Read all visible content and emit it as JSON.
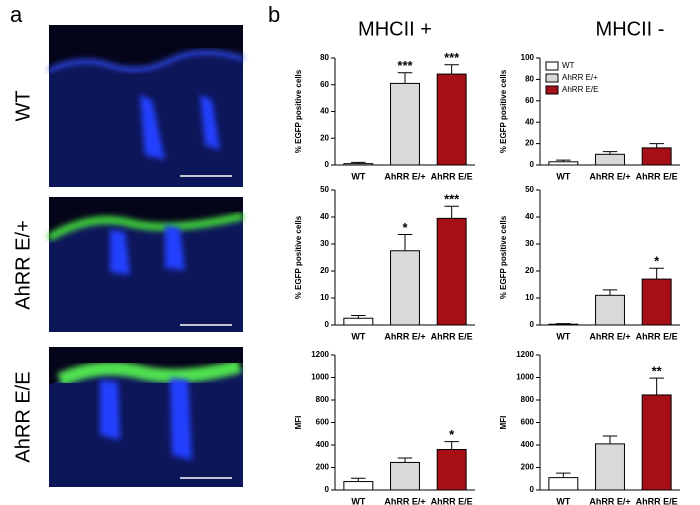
{
  "panels": {
    "a": "a",
    "b": "b"
  },
  "images": {
    "labels": [
      "WT",
      "AhRR E/+",
      "AhRR E/E"
    ]
  },
  "column_titles": [
    "MHCII +",
    "MHCII -"
  ],
  "chart_data": [
    {
      "type": "bar",
      "ylabel": "% EGFP positive cells",
      "categories": [
        "WT",
        "AhRR E/+",
        "AhRR E/E"
      ],
      "values": [
        1,
        61,
        68
      ],
      "errors": [
        1,
        8,
        7
      ],
      "value_annotations": [
        null,
        "***",
        "***"
      ],
      "colors": [
        "#ffffff",
        "#d9d9d9",
        "#a50f15"
      ],
      "ylim": [
        0,
        80
      ],
      "yticks": [
        0,
        20,
        40,
        60,
        80
      ]
    },
    {
      "type": "bar",
      "ylabel": "% EGFP positive cells",
      "categories": [
        "WT",
        "AhRR E/+",
        "AhRR E/E"
      ],
      "values": [
        3,
        10,
        16
      ],
      "errors": [
        1.5,
        2.5,
        4
      ],
      "value_annotations": [
        null,
        null,
        null
      ],
      "colors": [
        "#ffffff",
        "#d9d9d9",
        "#a50f15"
      ],
      "ylim": [
        0,
        100
      ],
      "yticks": [
        0,
        20,
        40,
        60,
        80,
        100
      ],
      "legend": {
        "position": "upper left",
        "entries": [
          "WT",
          "AhRR E/+",
          "AhRR E/E"
        ]
      }
    },
    {
      "type": "bar",
      "ylabel": "% EGFP positive cells",
      "categories": [
        "WT",
        "AhRR E/+",
        "AhRR E/E"
      ],
      "values": [
        2.5,
        27.5,
        39.5
      ],
      "errors": [
        1,
        6,
        4.5
      ],
      "value_annotations": [
        null,
        "*",
        "***"
      ],
      "colors": [
        "#ffffff",
        "#d9d9d9",
        "#a50f15"
      ],
      "ylim": [
        0,
        50
      ],
      "yticks": [
        0,
        10,
        20,
        30,
        40,
        50
      ]
    },
    {
      "type": "bar",
      "ylabel": "% EGFP positive cells",
      "categories": [
        "WT",
        "AhRR E/+",
        "AhRR E/E"
      ],
      "values": [
        0.3,
        11,
        17
      ],
      "errors": [
        0.2,
        2,
        4
      ],
      "value_annotations": [
        null,
        null,
        "*"
      ],
      "colors": [
        "#ffffff",
        "#d9d9d9",
        "#a50f15"
      ],
      "ylim": [
        0,
        50
      ],
      "yticks": [
        0,
        10,
        20,
        30,
        40,
        50
      ]
    },
    {
      "type": "bar",
      "ylabel": "MFI",
      "categories": [
        "WT",
        "AhRR E/+",
        "AhRR E/E"
      ],
      "values": [
        75,
        245,
        360
      ],
      "errors": [
        30,
        40,
        70
      ],
      "value_annotations": [
        null,
        null,
        "*"
      ],
      "colors": [
        "#ffffff",
        "#d9d9d9",
        "#a50f15"
      ],
      "ylim": [
        0,
        1200
      ],
      "yticks": [
        0,
        200,
        400,
        600,
        800,
        1000,
        1200
      ]
    },
    {
      "type": "bar",
      "ylabel": "MFI",
      "categories": [
        "WT",
        "AhRR E/+",
        "AhRR E/E"
      ],
      "values": [
        110,
        410,
        845
      ],
      "errors": [
        40,
        70,
        150
      ],
      "value_annotations": [
        null,
        null,
        "**"
      ],
      "colors": [
        "#ffffff",
        "#d9d9d9",
        "#a50f15"
      ],
      "ylim": [
        0,
        1200
      ],
      "yticks": [
        0,
        200,
        400,
        600,
        800,
        1000,
        1200
      ]
    }
  ]
}
